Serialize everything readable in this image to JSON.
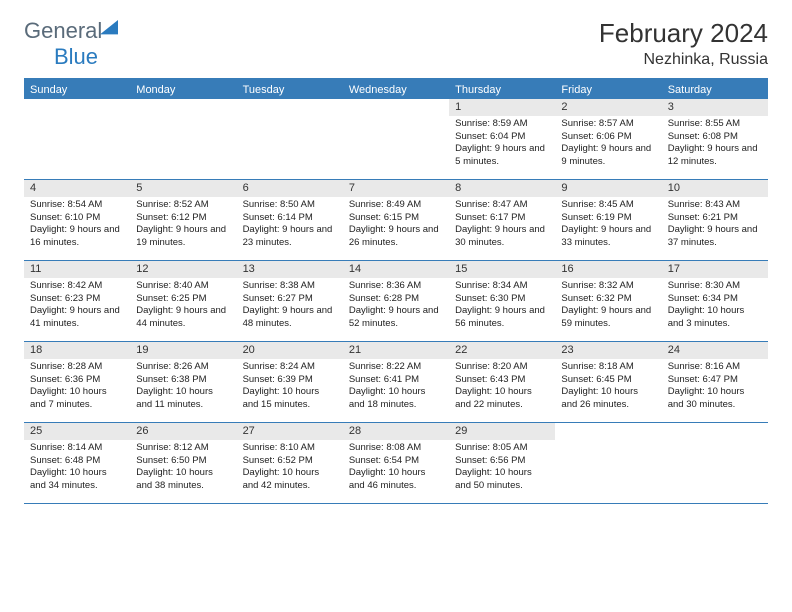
{
  "brand": {
    "general": "General",
    "blue": "Blue"
  },
  "title": "February 2024",
  "location": "Nezhinka, Russia",
  "header_bg": "#377cb8",
  "daynum_bg": "#e9e9e9",
  "rule_color": "#377cb8",
  "dow": [
    "Sunday",
    "Monday",
    "Tuesday",
    "Wednesday",
    "Thursday",
    "Friday",
    "Saturday"
  ],
  "weeks": [
    [
      null,
      null,
      null,
      null,
      {
        "n": "1",
        "sr": "8:59 AM",
        "ss": "6:04 PM",
        "dl": "9 hours and 5 minutes."
      },
      {
        "n": "2",
        "sr": "8:57 AM",
        "ss": "6:06 PM",
        "dl": "9 hours and 9 minutes."
      },
      {
        "n": "3",
        "sr": "8:55 AM",
        "ss": "6:08 PM",
        "dl": "9 hours and 12 minutes."
      }
    ],
    [
      {
        "n": "4",
        "sr": "8:54 AM",
        "ss": "6:10 PM",
        "dl": "9 hours and 16 minutes."
      },
      {
        "n": "5",
        "sr": "8:52 AM",
        "ss": "6:12 PM",
        "dl": "9 hours and 19 minutes."
      },
      {
        "n": "6",
        "sr": "8:50 AM",
        "ss": "6:14 PM",
        "dl": "9 hours and 23 minutes."
      },
      {
        "n": "7",
        "sr": "8:49 AM",
        "ss": "6:15 PM",
        "dl": "9 hours and 26 minutes."
      },
      {
        "n": "8",
        "sr": "8:47 AM",
        "ss": "6:17 PM",
        "dl": "9 hours and 30 minutes."
      },
      {
        "n": "9",
        "sr": "8:45 AM",
        "ss": "6:19 PM",
        "dl": "9 hours and 33 minutes."
      },
      {
        "n": "10",
        "sr": "8:43 AM",
        "ss": "6:21 PM",
        "dl": "9 hours and 37 minutes."
      }
    ],
    [
      {
        "n": "11",
        "sr": "8:42 AM",
        "ss": "6:23 PM",
        "dl": "9 hours and 41 minutes."
      },
      {
        "n": "12",
        "sr": "8:40 AM",
        "ss": "6:25 PM",
        "dl": "9 hours and 44 minutes."
      },
      {
        "n": "13",
        "sr": "8:38 AM",
        "ss": "6:27 PM",
        "dl": "9 hours and 48 minutes."
      },
      {
        "n": "14",
        "sr": "8:36 AM",
        "ss": "6:28 PM",
        "dl": "9 hours and 52 minutes."
      },
      {
        "n": "15",
        "sr": "8:34 AM",
        "ss": "6:30 PM",
        "dl": "9 hours and 56 minutes."
      },
      {
        "n": "16",
        "sr": "8:32 AM",
        "ss": "6:32 PM",
        "dl": "9 hours and 59 minutes."
      },
      {
        "n": "17",
        "sr": "8:30 AM",
        "ss": "6:34 PM",
        "dl": "10 hours and 3 minutes."
      }
    ],
    [
      {
        "n": "18",
        "sr": "8:28 AM",
        "ss": "6:36 PM",
        "dl": "10 hours and 7 minutes."
      },
      {
        "n": "19",
        "sr": "8:26 AM",
        "ss": "6:38 PM",
        "dl": "10 hours and 11 minutes."
      },
      {
        "n": "20",
        "sr": "8:24 AM",
        "ss": "6:39 PM",
        "dl": "10 hours and 15 minutes."
      },
      {
        "n": "21",
        "sr": "8:22 AM",
        "ss": "6:41 PM",
        "dl": "10 hours and 18 minutes."
      },
      {
        "n": "22",
        "sr": "8:20 AM",
        "ss": "6:43 PM",
        "dl": "10 hours and 22 minutes."
      },
      {
        "n": "23",
        "sr": "8:18 AM",
        "ss": "6:45 PM",
        "dl": "10 hours and 26 minutes."
      },
      {
        "n": "24",
        "sr": "8:16 AM",
        "ss": "6:47 PM",
        "dl": "10 hours and 30 minutes."
      }
    ],
    [
      {
        "n": "25",
        "sr": "8:14 AM",
        "ss": "6:48 PM",
        "dl": "10 hours and 34 minutes."
      },
      {
        "n": "26",
        "sr": "8:12 AM",
        "ss": "6:50 PM",
        "dl": "10 hours and 38 minutes."
      },
      {
        "n": "27",
        "sr": "8:10 AM",
        "ss": "6:52 PM",
        "dl": "10 hours and 42 minutes."
      },
      {
        "n": "28",
        "sr": "8:08 AM",
        "ss": "6:54 PM",
        "dl": "10 hours and 46 minutes."
      },
      {
        "n": "29",
        "sr": "8:05 AM",
        "ss": "6:56 PM",
        "dl": "10 hours and 50 minutes."
      },
      null,
      null
    ]
  ],
  "labels": {
    "sunrise": "Sunrise: ",
    "sunset": "Sunset: ",
    "daylight": "Daylight: "
  }
}
